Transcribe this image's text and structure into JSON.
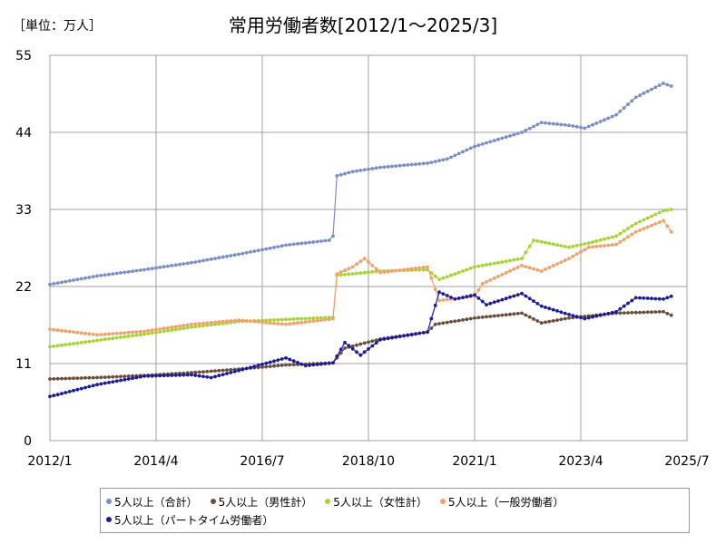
{
  "unit_label": "［単位：万人］",
  "chart_data": {
    "type": "line",
    "title": "常用労働者数[2012/1～2025/3]",
    "xlabel": "",
    "ylabel": "",
    "x_ticks": [
      "2012/1",
      "2014/4",
      "2016/7",
      "2018/10",
      "2021/1",
      "2023/4",
      "2025/7"
    ],
    "x_range": [
      "2012/1",
      "2025/7"
    ],
    "y_ticks": [
      0,
      11,
      22,
      33,
      44,
      55
    ],
    "ylim": [
      0,
      55
    ],
    "grid": true,
    "legend_position": "bottom",
    "series": [
      {
        "name": "5人以上（合計）",
        "color": "#7b8fc4",
        "points": [
          [
            "2012/1",
            22.3
          ],
          [
            "2013/1",
            23.5
          ],
          [
            "2014/1",
            24.4
          ],
          [
            "2015/1",
            25.4
          ],
          [
            "2016/1",
            26.6
          ],
          [
            "2017/1",
            27.9
          ],
          [
            "2017/12",
            28.6
          ],
          [
            "2018/1",
            29.2
          ],
          [
            "2018/2",
            37.8
          ],
          [
            "2018/6",
            38.4
          ],
          [
            "2019/1",
            39.0
          ],
          [
            "2020/1",
            39.6
          ],
          [
            "2020/6",
            40.2
          ],
          [
            "2021/1",
            42.0
          ],
          [
            "2022/1",
            44.0
          ],
          [
            "2022/6",
            45.4
          ],
          [
            "2023/1",
            45.0
          ],
          [
            "2023/5",
            44.6
          ],
          [
            "2024/1",
            46.5
          ],
          [
            "2024/6",
            49.0
          ],
          [
            "2025/1",
            51.0
          ],
          [
            "2025/3",
            50.6
          ]
        ]
      },
      {
        "name": "5人以上（男性計）",
        "color": "#6a4e3c",
        "points": [
          [
            "2012/1",
            8.8
          ],
          [
            "2013/1",
            9.0
          ],
          [
            "2014/1",
            9.3
          ],
          [
            "2015/1",
            9.7
          ],
          [
            "2016/1",
            10.2
          ],
          [
            "2017/1",
            10.8
          ],
          [
            "2018/1",
            11.1
          ],
          [
            "2018/4",
            13.2
          ],
          [
            "2019/1",
            14.5
          ],
          [
            "2020/1",
            15.5
          ],
          [
            "2020/3",
            16.6
          ],
          [
            "2021/1",
            17.5
          ],
          [
            "2022/1",
            18.2
          ],
          [
            "2022/6",
            16.8
          ],
          [
            "2023/1",
            17.5
          ],
          [
            "2024/1",
            18.2
          ],
          [
            "2025/1",
            18.4
          ],
          [
            "2025/3",
            17.9
          ]
        ]
      },
      {
        "name": "5人以上（女性計）",
        "color": "#a6d435",
        "points": [
          [
            "2012/1",
            13.4
          ],
          [
            "2013/1",
            14.3
          ],
          [
            "2014/1",
            15.2
          ],
          [
            "2015/1",
            16.2
          ],
          [
            "2016/1",
            17.0
          ],
          [
            "2017/1",
            17.3
          ],
          [
            "2018/1",
            17.6
          ],
          [
            "2018/2",
            23.6
          ],
          [
            "2019/1",
            24.2
          ],
          [
            "2020/1",
            24.4
          ],
          [
            "2020/4",
            23.0
          ],
          [
            "2021/1",
            24.8
          ],
          [
            "2022/1",
            26.0
          ],
          [
            "2022/4",
            28.6
          ],
          [
            "2023/1",
            27.6
          ],
          [
            "2023/6",
            28.2
          ],
          [
            "2024/1",
            29.2
          ],
          [
            "2024/6",
            31.0
          ],
          [
            "2025/1",
            32.8
          ],
          [
            "2025/3",
            33.0
          ]
        ]
      },
      {
        "name": "5人以上（一般労働者）",
        "color": "#f0a26a",
        "points": [
          [
            "2012/1",
            15.9
          ],
          [
            "2013/1",
            15.1
          ],
          [
            "2014/1",
            15.6
          ],
          [
            "2015/1",
            16.6
          ],
          [
            "2016/1",
            17.2
          ],
          [
            "2017/1",
            16.6
          ],
          [
            "2018/1",
            17.4
          ],
          [
            "2018/2",
            23.8
          ],
          [
            "2018/6",
            24.8
          ],
          [
            "2018/9",
            26.0
          ],
          [
            "2019/1",
            24.0
          ],
          [
            "2020/1",
            24.8
          ],
          [
            "2020/4",
            20.0
          ],
          [
            "2021/1",
            20.6
          ],
          [
            "2021/3",
            22.4
          ],
          [
            "2022/1",
            25.0
          ],
          [
            "2022/6",
            24.2
          ],
          [
            "2023/1",
            26.0
          ],
          [
            "2023/6",
            27.6
          ],
          [
            "2024/1",
            28.0
          ],
          [
            "2024/6",
            29.8
          ],
          [
            "2025/1",
            31.4
          ],
          [
            "2025/3",
            29.8
          ]
        ]
      },
      {
        "name": "5人以上（パートタイム労働者）",
        "color": "#1c1c96",
        "points": [
          [
            "2012/1",
            6.3
          ],
          [
            "2012/6",
            7.0
          ],
          [
            "2013/1",
            8.0
          ],
          [
            "2014/1",
            9.2
          ],
          [
            "2015/1",
            9.4
          ],
          [
            "2015/6",
            9.0
          ],
          [
            "2016/1",
            10.0
          ],
          [
            "2017/1",
            11.8
          ],
          [
            "2017/6",
            10.7
          ],
          [
            "2018/1",
            11.1
          ],
          [
            "2018/4",
            14.0
          ],
          [
            "2018/8",
            12.2
          ],
          [
            "2019/1",
            14.4
          ],
          [
            "2020/1",
            15.5
          ],
          [
            "2020/4",
            21.2
          ],
          [
            "2020/8",
            20.2
          ],
          [
            "2021/1",
            20.8
          ],
          [
            "2021/4",
            19.4
          ],
          [
            "2022/1",
            21.0
          ],
          [
            "2022/6",
            19.2
          ],
          [
            "2023/1",
            18.0
          ],
          [
            "2023/5",
            17.4
          ],
          [
            "2024/1",
            18.4
          ],
          [
            "2024/6",
            20.4
          ],
          [
            "2025/1",
            20.2
          ],
          [
            "2025/3",
            20.6
          ]
        ]
      }
    ]
  }
}
